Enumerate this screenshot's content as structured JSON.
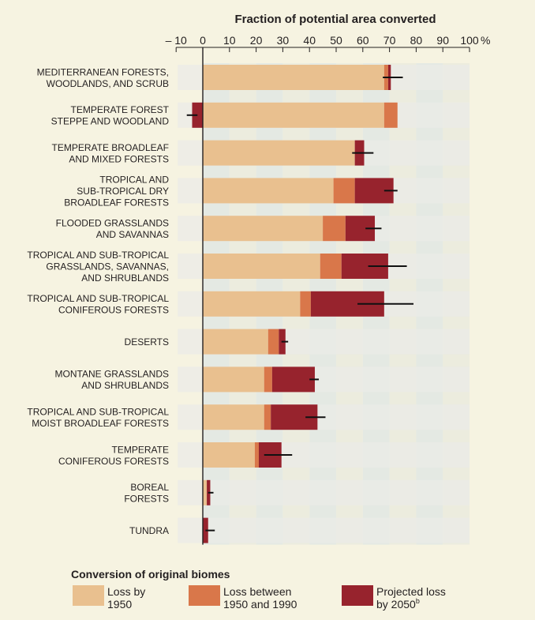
{
  "chart_data": {
    "type": "bar",
    "orientation": "horizontal-stacked",
    "title": "Fraction of potential area converted",
    "x_axis": {
      "range": [
        -10,
        100
      ],
      "ticks": [
        -10,
        0,
        10,
        20,
        30,
        40,
        50,
        60,
        70,
        80,
        90,
        100
      ],
      "tick_labels": [
        "– 10",
        "0",
        "10",
        "20",
        "30",
        "40",
        "50",
        "60",
        "70",
        "80",
        "90",
        "100"
      ],
      "unit": "%"
    },
    "categories": [
      [
        "MEDITERRANEAN FORESTS,",
        "WOODLANDS, AND SCRUB"
      ],
      [
        "TEMPERATE FOREST",
        "STEPPE AND WOODLAND"
      ],
      [
        "TEMPERATE BROADLEAF",
        "AND MIXED FORESTS"
      ],
      [
        "TROPICAL AND",
        "SUB-TROPICAL DRY",
        "BROADLEAF FORESTS"
      ],
      [
        "FLOODED GRASSLANDS",
        "AND SAVANNAS"
      ],
      [
        "TROPICAL AND SUB-TROPICAL",
        "GRASSLANDS, SAVANNAS,",
        "AND SHRUBLANDS"
      ],
      [
        "TROPICAL AND SUB-TROPICAL",
        "CONIFEROUS FORESTS"
      ],
      [
        "DESERTS"
      ],
      [
        "MONTANE GRASSLANDS",
        "AND SHRUBLANDS"
      ],
      [
        "TROPICAL AND SUB-TROPICAL",
        "MOIST BROADLEAF FORESTS"
      ],
      [
        "TEMPERATE",
        "CONIFEROUS FORESTS"
      ],
      [
        "BOREAL",
        "FORESTS"
      ],
      [
        "TUNDRA"
      ]
    ],
    "series": [
      {
        "name": "Loss by 1950",
        "color": "#e9c08f",
        "values": [
          68,
          68,
          57,
          49,
          45,
          44,
          36.5,
          24.5,
          23,
          23,
          19.5,
          1.5,
          0
        ]
      },
      {
        "name": "Loss between 1950 and 1990",
        "color": "#d9774a",
        "values": [
          1.5,
          5,
          0,
          8,
          8.5,
          8,
          4,
          4,
          3,
          2.5,
          1.5,
          0,
          0
        ]
      },
      {
        "name": "Projected loss by 2050",
        "color": "#97232d",
        "values": [
          1,
          -4,
          3.5,
          14.5,
          11,
          17.5,
          27.5,
          2.5,
          16,
          17.5,
          8.5,
          1.3,
          2
        ]
      }
    ],
    "error_bars": [
      [
        67.5,
        75
      ],
      [
        -6,
        -2
      ],
      [
        56,
        64
      ],
      [
        68,
        73
      ],
      [
        61,
        67
      ],
      [
        62,
        76.5
      ],
      [
        58,
        79
      ],
      [
        29.5,
        32
      ],
      [
        40,
        43.5
      ],
      [
        38.5,
        46
      ],
      [
        23,
        33.5
      ],
      [
        2,
        4
      ],
      [
        1,
        4.5
      ]
    ],
    "legend": {
      "title": "Conversion of original biomes",
      "items": [
        {
          "lines": [
            "Loss by",
            "1950"
          ],
          "color": "#e9c08f"
        },
        {
          "lines": [
            "Loss between",
            "1950 and 1990"
          ],
          "color": "#d9774a"
        },
        {
          "lines": [
            "Projected loss",
            "by 2050"
          ],
          "sup": "b",
          "color": "#97232d"
        }
      ],
      "position": "bottom"
    }
  }
}
